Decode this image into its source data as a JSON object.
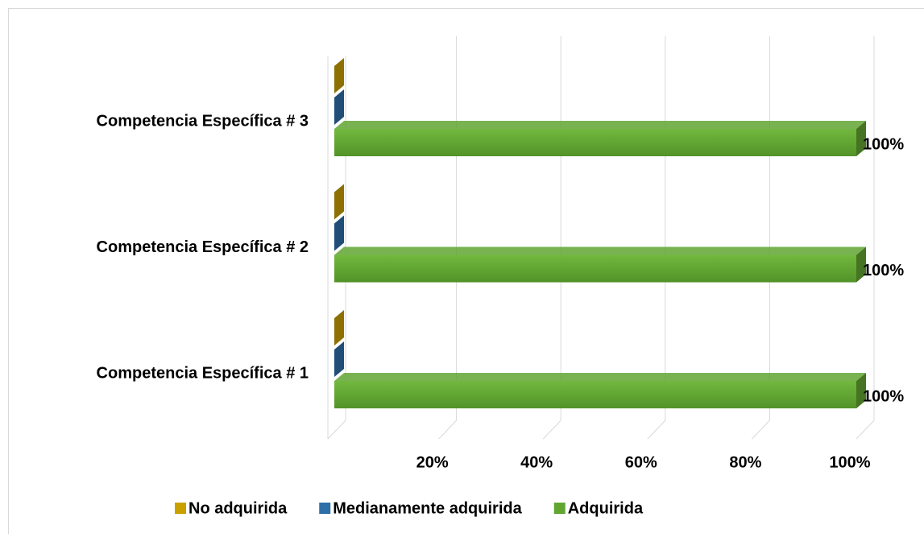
{
  "chart_data": {
    "type": "bar3d_horizontal",
    "categories": [
      "Competencia Específica # 1",
      "Competencia Específica # 2",
      "Competencia Específica # 3"
    ],
    "series": [
      {
        "name": "No adquirida",
        "color": "#c9a000",
        "values": [
          0,
          0,
          0
        ]
      },
      {
        "name": "Medianamente adquirida",
        "color": "#2e6fa8",
        "values": [
          0,
          0,
          0
        ]
      },
      {
        "name": "Adquirida",
        "color": "#62a632",
        "values": [
          100,
          100,
          100
        ],
        "value_labels": [
          "100%",
          "100%",
          "100%"
        ]
      }
    ],
    "xlim": [
      0,
      100
    ],
    "xticks": [
      {
        "value": 20,
        "label": "20%"
      },
      {
        "value": 40,
        "label": "40%"
      },
      {
        "value": 60,
        "label": "60%"
      },
      {
        "value": 80,
        "label": "80%"
      },
      {
        "value": 100,
        "label": "100%"
      }
    ],
    "grid": true,
    "legend": "bottom"
  }
}
